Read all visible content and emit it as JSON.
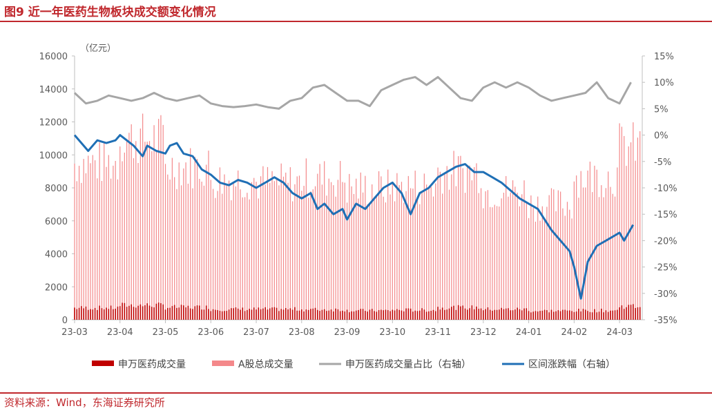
{
  "header": {
    "title": "图9  近一年医药生物板块成交额变化情况"
  },
  "footer": {
    "source": "资料来源：Wind，东海证券研究所"
  },
  "colors": {
    "accent": "#c0282d",
    "bar_sw": "#c00000",
    "bar_a": "#f4888a",
    "line_share": "#a6a6a6",
    "line_ret": "#1f6fb5"
  },
  "chart_data": {
    "type": "bar",
    "unit_label": "（亿元）",
    "x_tick_labels": [
      "23-03",
      "23-04",
      "23-05",
      "23-06",
      "23-07",
      "23-08",
      "23-09",
      "23-10",
      "23-11",
      "23-12",
      "24-01",
      "24-02",
      "24-03"
    ],
    "y_left": {
      "min": 0,
      "max": 16000,
      "step": 2000,
      "ticks": [
        "0",
        "2000",
        "4000",
        "6000",
        "8000",
        "10000",
        "12000",
        "14000",
        "16000"
      ]
    },
    "y_right": {
      "min": -35,
      "max": 15,
      "step": 5,
      "ticks": [
        "-35%",
        "-30%",
        "-25%",
        "-20%",
        "-15%",
        "-10%",
        "-5%",
        "0%",
        "5%",
        "10%",
        "15%"
      ]
    },
    "legend": [
      "申万医药成交量",
      "A股总成交量",
      "申万医药成交量占比（右轴）",
      "区间涨跌幅（右轴）"
    ],
    "series": [
      {
        "name": "A股总成交量",
        "axis": "left",
        "kind": "bar",
        "monthly_avg": [
          9500,
          11000,
          9300,
          8500,
          8300,
          8600,
          8000,
          8100,
          9000,
          7800,
          7000,
          8700,
          10500
        ]
      },
      {
        "name": "申万医药成交量",
        "axis": "left",
        "kind": "bar",
        "monthly_avg": [
          720,
          880,
          760,
          640,
          640,
          620,
          560,
          590,
          740,
          640,
          540,
          560,
          820
        ]
      },
      {
        "name": "申万医药成交量占比（右轴）",
        "axis": "right",
        "kind": "line",
        "x": [
          0,
          0.25,
          0.5,
          0.75,
          1,
          1.25,
          1.5,
          1.75,
          2,
          2.25,
          2.5,
          2.75,
          3,
          3.25,
          3.5,
          3.75,
          4,
          4.25,
          4.5,
          4.75,
          5,
          5.25,
          5.5,
          5.75,
          6,
          6.25,
          6.5,
          6.75,
          7,
          7.25,
          7.5,
          7.75,
          8,
          8.25,
          8.5,
          8.75,
          9,
          9.25,
          9.5,
          9.75,
          10,
          10.25,
          10.5,
          10.75,
          11,
          11.25,
          11.5,
          11.75,
          12,
          12.25
        ],
        "values": [
          8,
          6,
          6.5,
          7.5,
          7,
          6.5,
          7,
          8,
          7,
          6.5,
          7,
          7.5,
          6,
          5.5,
          5.3,
          5.5,
          5.8,
          5.3,
          5,
          6.5,
          7,
          9,
          9.5,
          8,
          6.5,
          6.5,
          5.5,
          8.5,
          9.5,
          10.5,
          11,
          9.5,
          11,
          9,
          7,
          6.5,
          9,
          10,
          9,
          10,
          9,
          7.5,
          6.5,
          7,
          7.5,
          8,
          10,
          7,
          6,
          10
        ]
      },
      {
        "name": "区间涨跌幅（右轴）",
        "axis": "right",
        "kind": "line",
        "x": [
          0,
          0.15,
          0.3,
          0.5,
          0.7,
          0.9,
          1,
          1.15,
          1.3,
          1.5,
          1.6,
          1.8,
          2,
          2.1,
          2.25,
          2.4,
          2.6,
          2.8,
          3,
          3.2,
          3.4,
          3.6,
          3.8,
          4,
          4.2,
          4.4,
          4.6,
          4.8,
          5,
          5.2,
          5.35,
          5.5,
          5.7,
          5.9,
          6,
          6.2,
          6.4,
          6.6,
          6.8,
          7,
          7.2,
          7.3,
          7.4,
          7.6,
          7.8,
          8,
          8.2,
          8.4,
          8.6,
          8.8,
          9,
          9.2,
          9.4,
          9.6,
          9.8,
          10,
          10.2,
          10.35,
          10.5,
          10.7,
          10.9,
          11,
          11.15,
          11.3,
          11.5,
          11.7,
          11.9,
          12,
          12.1,
          12.3
        ],
        "values": [
          0,
          -1.5,
          -3,
          -1,
          -1.5,
          -1,
          0,
          -1,
          -2,
          -4,
          -2,
          -3,
          -3.5,
          -2,
          -1.5,
          -3.5,
          -4,
          -6.5,
          -7.5,
          -9,
          -9.5,
          -8.5,
          -9,
          -10,
          -9,
          -8,
          -9,
          -11,
          -12,
          -11,
          -14,
          -13,
          -15,
          -14,
          -16,
          -13,
          -14,
          -12,
          -10,
          -9,
          -11,
          -13,
          -15,
          -11,
          -10,
          -8,
          -7,
          -6,
          -5.5,
          -7,
          -7,
          -8,
          -9,
          -10.5,
          -12,
          -13,
          -14,
          -16,
          -18,
          -20,
          -22,
          -25,
          -31,
          -24,
          -21,
          -20,
          -19,
          -18.5,
          -20,
          -17
        ]
      }
    ]
  }
}
